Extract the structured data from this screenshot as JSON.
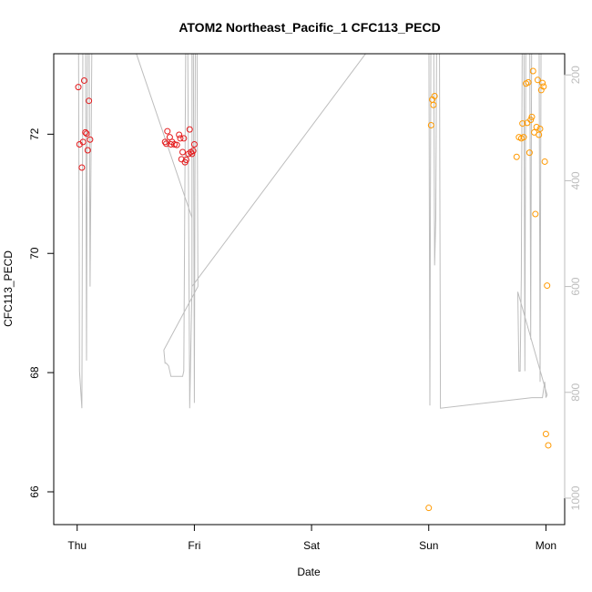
{
  "chart_data": {
    "type": "scatter",
    "title": "ATOM2 Northeast_Pacific_1 CFC113_PECD",
    "xlabel": "Date",
    "ylabel": "CFC113_PECD",
    "x_ticks": [
      {
        "label": "Thu",
        "day": 0
      },
      {
        "label": "Fri",
        "day": 1
      },
      {
        "label": "Sat",
        "day": 2
      },
      {
        "label": "Sun",
        "day": 3
      },
      {
        "label": "Mon",
        "day": 4
      }
    ],
    "xlim": [
      -0.2,
      4.16
    ],
    "ylim": [
      65.45,
      73.35
    ],
    "y_ticks": [
      66,
      68,
      70,
      72
    ],
    "right_axis": {
      "ylim": [
        1050,
        160
      ],
      "ticks": [
        200,
        400,
        600,
        800,
        1000
      ],
      "color": "#bdbdbd"
    },
    "series": [
      {
        "color": "#e41a1c",
        "points": [
          [
            0.01,
            72.79
          ],
          [
            0.02,
            71.83
          ],
          [
            0.04,
            71.44
          ],
          [
            0.05,
            71.87
          ],
          [
            0.06,
            72.9
          ],
          [
            0.07,
            72.03
          ],
          [
            0.08,
            72.01
          ],
          [
            0.09,
            71.73
          ],
          [
            0.1,
            72.56
          ],
          [
            0.11,
            71.91
          ],
          [
            0.75,
            71.87
          ],
          [
            0.76,
            71.84
          ],
          [
            0.77,
            72.05
          ],
          [
            0.79,
            71.95
          ],
          [
            0.8,
            71.83
          ],
          [
            0.81,
            71.87
          ],
          [
            0.83,
            71.83
          ],
          [
            0.85,
            71.82
          ],
          [
            0.87,
            71.99
          ],
          [
            0.88,
            71.93
          ],
          [
            0.89,
            71.58
          ],
          [
            0.9,
            71.7
          ],
          [
            0.91,
            71.93
          ],
          [
            0.92,
            71.53
          ],
          [
            0.93,
            71.57
          ],
          [
            0.95,
            71.67
          ],
          [
            0.96,
            72.08
          ],
          [
            0.97,
            71.7
          ],
          [
            0.98,
            71.67
          ],
          [
            0.99,
            71.72
          ],
          [
            1.0,
            71.83
          ]
        ]
      },
      {
        "color": "#ff9900",
        "points": [
          [
            3.0,
            65.73
          ],
          [
            3.02,
            72.15
          ],
          [
            3.03,
            72.58
          ],
          [
            3.04,
            72.49
          ],
          [
            3.05,
            72.64
          ],
          [
            3.75,
            71.62
          ],
          [
            3.77,
            71.95
          ],
          [
            3.79,
            71.93
          ],
          [
            3.8,
            72.18
          ],
          [
            3.81,
            71.95
          ],
          [
            3.83,
            72.85
          ],
          [
            3.84,
            72.19
          ],
          [
            3.85,
            72.87
          ],
          [
            3.86,
            71.69
          ],
          [
            3.87,
            72.24
          ],
          [
            3.88,
            72.29
          ],
          [
            3.89,
            73.06
          ],
          [
            3.9,
            72.03
          ],
          [
            3.91,
            70.66
          ],
          [
            3.92,
            72.12
          ],
          [
            3.93,
            72.91
          ],
          [
            3.94,
            71.99
          ],
          [
            3.95,
            72.09
          ],
          [
            3.96,
            72.74
          ],
          [
            3.97,
            72.86
          ],
          [
            3.98,
            72.8
          ],
          [
            3.99,
            71.54
          ],
          [
            4.0,
            66.97
          ],
          [
            4.01,
            69.46
          ],
          [
            4.02,
            66.78
          ]
        ]
      }
    ],
    "depth_profile": {
      "color": "#bdbdbd",
      "points": [
        [
          0.01,
          0
        ],
        [
          0.02,
          760
        ],
        [
          0.04,
          830
        ],
        [
          0.05,
          0
        ],
        [
          0.07,
          0
        ],
        [
          0.08,
          740
        ],
        [
          0.09,
          0
        ],
        [
          0.1,
          0
        ],
        [
          0.11,
          600
        ],
        [
          0.13,
          0
        ],
        [
          0.26,
          0
        ],
        [
          0.98,
          470
        ],
        [
          0.98,
          600
        ],
        [
          0.98,
          0
        ],
        [
          0.99,
          0
        ],
        [
          1.0,
          820
        ],
        [
          1.01,
          0
        ],
        [
          1.02,
          0
        ],
        [
          1.03,
          600
        ],
        [
          0.74,
          720
        ],
        [
          0.75,
          745
        ],
        [
          0.76,
          745
        ],
        [
          0.78,
          750
        ],
        [
          0.8,
          770
        ],
        [
          0.81,
          770
        ],
        [
          0.83,
          770
        ],
        [
          0.86,
          770
        ],
        [
          0.9,
          770
        ],
        [
          0.91,
          760
        ],
        [
          0.93,
          0
        ],
        [
          0.94,
          0
        ],
        [
          0.96,
          830
        ],
        [
          0.97,
          720
        ],
        [
          0.98,
          600
        ],
        [
          3.0,
          0
        ],
        [
          3.01,
          825
        ],
        [
          3.02,
          0
        ],
        [
          3.04,
          0
        ],
        [
          3.05,
          560
        ],
        [
          3.06,
          470
        ],
        [
          3.07,
          0
        ],
        [
          3.08,
          0
        ],
        [
          3.09,
          0
        ],
        [
          3.1,
          830
        ],
        [
          3.88,
          810
        ],
        [
          3.97,
          810
        ],
        [
          3.98,
          795
        ],
        [
          3.99,
          780
        ],
        [
          4.0,
          810
        ],
        [
          4.01,
          805
        ],
        [
          3.76,
          610
        ],
        [
          3.77,
          760
        ],
        [
          3.78,
          760
        ],
        [
          3.79,
          580
        ],
        [
          3.8,
          0
        ],
        [
          3.81,
          0
        ],
        [
          3.82,
          760
        ],
        [
          3.83,
          0
        ],
        [
          3.84,
          0
        ],
        [
          3.85,
          0
        ],
        [
          3.86,
          0
        ],
        [
          3.87,
          700
        ],
        [
          3.88,
          0
        ],
        [
          3.89,
          0
        ],
        [
          3.9,
          0
        ],
        [
          3.91,
          0
        ],
        [
          3.92,
          0
        ],
        [
          3.93,
          0
        ],
        [
          3.94,
          0
        ],
        [
          3.95,
          780
        ],
        [
          3.96,
          0
        ]
      ]
    }
  }
}
